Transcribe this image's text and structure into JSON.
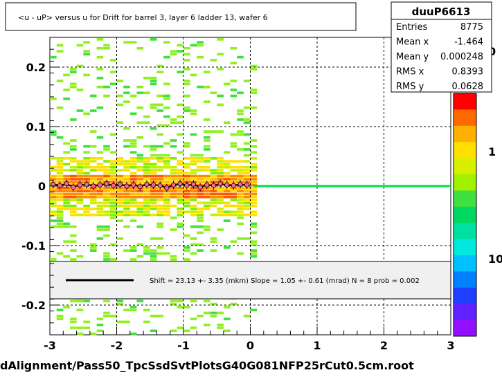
{
  "chart_data": {
    "type": "heatmap",
    "title": "<u - uP>       versus   u for Drift for barrel 3, layer 6 ladder 13, wafer 6",
    "xlabel": "",
    "ylabel": "",
    "xlim": [
      -3,
      3
    ],
    "ylim": [
      -0.25,
      0.25
    ],
    "x_ticks": [
      -3,
      -2,
      -1,
      0,
      1,
      2,
      3
    ],
    "x_tick_labels": [
      "-3",
      "-2",
      "-1",
      "0",
      "1",
      "2",
      "3"
    ],
    "y_ticks": [
      -0.2,
      -0.1,
      0,
      0.1,
      0.2
    ],
    "y_tick_labels": [
      "-0.2",
      "-0.1",
      "0",
      "0.1",
      "0.2"
    ],
    "grid": true,
    "stats_box": {
      "name": "duuP6613",
      "rows": [
        {
          "label": "Entries",
          "value": "8775"
        },
        {
          "label": "Mean x",
          "value": "-1.464"
        },
        {
          "label": "Mean y",
          "value": "0.000248"
        },
        {
          "label": "RMS x",
          "value": "0.8393"
        },
        {
          "label": "RMS y",
          "value": "0.0628"
        }
      ]
    },
    "color_scale": {
      "labels": [
        "0",
        "1",
        "10"
      ],
      "colors": [
        "#ff0000",
        "#ff6a00",
        "#ffb000",
        "#ffe000",
        "#d8f000",
        "#a0f000",
        "#40e040",
        "#00d860",
        "#00e0a0",
        "#00e8e0",
        "#00c0ff",
        "#0080ff",
        "#2040ff",
        "#6020ff",
        "#9010ff"
      ]
    },
    "fit": {
      "text": "Shift =    23.13 +- 3.35 (mkm) Slope =    1.05 +- 0.61 (mrad)  N = 8 prob = 0.002",
      "line_color": "#000000"
    },
    "fit_line_right": {
      "x": [
        0.05,
        3.0
      ],
      "y": [
        0.0,
        0.0
      ],
      "color": "#00e040"
    },
    "profile_points": {
      "x": [
        -2.95,
        -2.85,
        -2.75,
        -2.65,
        -2.55,
        -2.45,
        -2.35,
        -2.25,
        -2.15,
        -2.05,
        -1.95,
        -1.85,
        -1.75,
        -1.65,
        -1.55,
        -1.45,
        -1.35,
        -1.25,
        -1.15,
        -1.05,
        -0.95,
        -0.85,
        -0.75,
        -0.65,
        -0.55,
        -0.45,
        -0.35,
        -0.25,
        -0.15,
        -0.05
      ],
      "y": [
        0.003,
        0.001,
        0.004,
        -0.002,
        0.002,
        0.003,
        0.0,
        0.002,
        0.004,
        0.001,
        0.003,
        0.0,
        0.002,
        -0.001,
        0.003,
        0.002,
        0.001,
        -0.003,
        0.002,
        0.004,
        0.001,
        0.003,
        -0.002,
        0.002,
        0.001,
        0.004,
        0.002,
        0.001,
        0.003,
        0.002
      ]
    },
    "density_band": {
      "x_range": [
        -3.0,
        0.0
      ],
      "core_y_half_width": 0.02,
      "halo_y_half_width": 0.05
    },
    "footer": "dAlignment/Pass50_TpcSsdSvtPlotsG40G081NFP25rCut0.5cm.root"
  }
}
